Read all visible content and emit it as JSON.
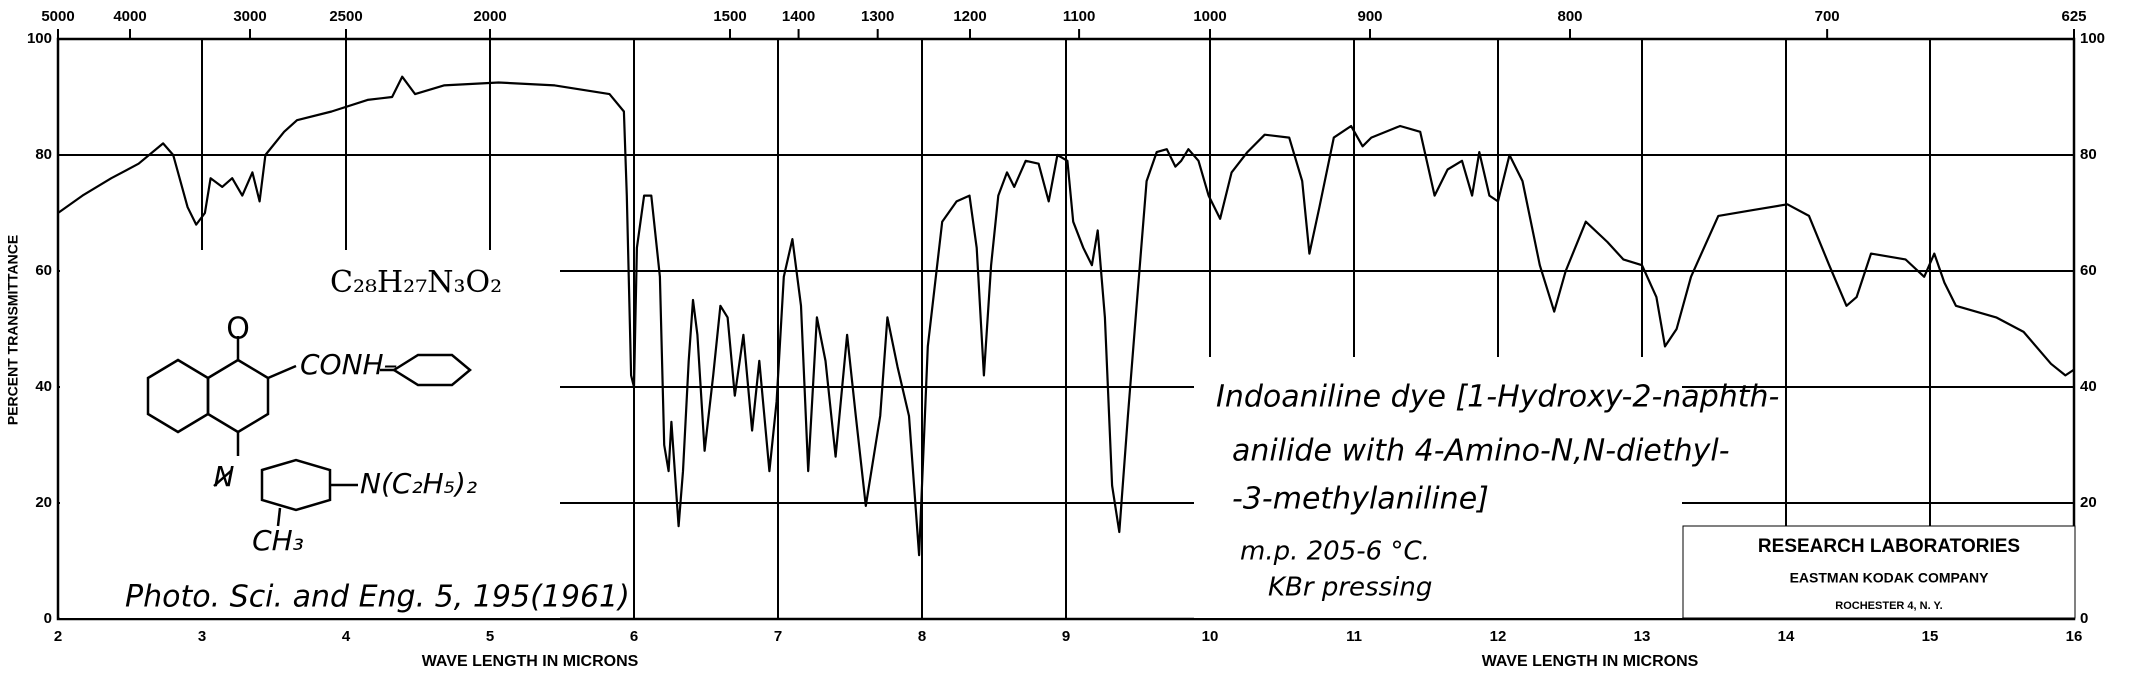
{
  "chart_data": {
    "type": "line",
    "y_label": "PERCENT TRANSMITTANCE",
    "x_label": "WAVE LENGTH IN MICRONS",
    "xlim": [
      2,
      16
    ],
    "ylim": [
      0,
      100
    ],
    "xticks": [
      2,
      3,
      4,
      5,
      6,
      7,
      8,
      9,
      10,
      11,
      12,
      13,
      14,
      15,
      16
    ],
    "yticks": [
      0,
      20,
      40,
      60,
      80,
      100
    ],
    "x2ticks": [
      5000,
      4000,
      3000,
      2500,
      2000,
      1500,
      1400,
      1300,
      1200,
      1100,
      1000,
      900,
      800,
      700,
      625
    ],
    "grid": true,
    "color": "#000000",
    "x": [
      2.0,
      2.17,
      2.37,
      2.56,
      2.73,
      2.8,
      2.9,
      2.96,
      3.02,
      3.06,
      3.14,
      3.21,
      3.28,
      3.35,
      3.4,
      3.44,
      3.57,
      3.66,
      3.9,
      4.15,
      4.32,
      4.39,
      4.48,
      4.68,
      5.06,
      5.45,
      5.83,
      5.93,
      5.95,
      5.98,
      6.0,
      6.02,
      6.07,
      6.12,
      6.18,
      6.21,
      6.24,
      6.26,
      6.31,
      6.34,
      6.38,
      6.41,
      6.44,
      6.49,
      6.55,
      6.6,
      6.65,
      6.7,
      6.76,
      6.82,
      6.87,
      6.94,
      6.99,
      7.04,
      7.1,
      7.16,
      7.21,
      7.27,
      7.33,
      7.4,
      7.48,
      7.54,
      7.61,
      7.71,
      7.76,
      7.83,
      7.91,
      7.98,
      8.04,
      8.14,
      8.24,
      8.33,
      8.38,
      8.43,
      8.48,
      8.53,
      8.59,
      8.64,
      8.72,
      8.81,
      8.88,
      8.94,
      9.01,
      9.05,
      9.12,
      9.18,
      9.22,
      9.27,
      9.32,
      9.37,
      9.43,
      9.49,
      9.56,
      9.63,
      9.7,
      9.76,
      9.8,
      9.85,
      9.92,
      9.99,
      10.07,
      10.15,
      10.26,
      10.38,
      10.55,
      10.64,
      10.69,
      10.76,
      10.86,
      10.98,
      11.06,
      11.12,
      11.32,
      11.46,
      11.56,
      11.65,
      11.75,
      11.82,
      11.87,
      11.94,
      12.0,
      12.08,
      12.17,
      12.29,
      12.39,
      12.47,
      12.61,
      12.76,
      12.87,
      13.0,
      13.1,
      13.16,
      13.24,
      13.34,
      13.53,
      13.77,
      14.01,
      14.16,
      14.3,
      14.42,
      14.49,
      14.59,
      14.83,
      14.96,
      15.03,
      15.1,
      15.18,
      15.46,
      15.65,
      15.84,
      15.94,
      16.0
    ],
    "values": [
      70,
      73,
      76,
      78.5,
      82,
      80,
      71,
      68,
      70,
      76,
      74.5,
      76,
      73,
      77,
      72,
      80,
      84,
      86,
      87.5,
      89.5,
      90,
      93.5,
      90.5,
      92,
      92.5,
      92,
      90.5,
      87.5,
      73,
      42,
      40,
      64,
      73,
      73,
      59,
      30,
      25.5,
      34,
      16,
      25.5,
      44.5,
      55,
      49,
      29,
      42,
      54,
      52,
      38.5,
      49,
      32.5,
      44.5,
      25.5,
      37.5,
      59,
      65.5,
      54,
      25.5,
      52,
      44.5,
      28,
      49,
      35,
      19.5,
      35,
      52,
      43.5,
      35,
      11,
      47,
      68.5,
      72,
      73,
      64,
      42,
      61,
      73,
      77,
      74.5,
      79,
      78.5,
      72,
      80,
      79,
      68.5,
      64,
      61,
      67,
      52,
      23,
      15,
      35,
      54,
      75.5,
      80.5,
      81,
      78,
      79,
      81,
      79,
      73,
      69,
      77,
      80.5,
      83.5,
      83,
      75.5,
      63,
      71,
      83,
      85,
      81.5,
      83,
      85,
      84,
      73,
      77.5,
      79,
      73,
      80.5,
      73,
      72,
      80,
      75.5,
      61,
      53,
      60,
      68.5,
      65,
      62,
      61,
      55.5,
      47,
      50,
      59,
      69.5,
      70.5,
      71.5,
      69.5,
      61,
      54,
      55.5,
      63,
      62,
      59,
      63,
      58,
      54,
      52,
      49.5,
      44,
      42,
      43
    ],
    "formula": "C₂₈H₂₇N₃O₂",
    "structure_labels": [
      "O",
      "CONH–",
      "N",
      "N(C₂H₅)₂",
      "CH₃"
    ],
    "reference": "Photo. Sci. and Eng. 5, 195(1961)",
    "description": [
      "Indoaniline dye [1-Hydroxy-2-naphth-",
      "anilide with 4-Amino-N,N-diethyl-",
      "-3-methylaniline]",
      "m.p. 205-6 °C.",
      "KBr pressing"
    ],
    "laboratory": [
      "RESEARCH LABORATORIES",
      "EASTMAN KODAK COMPANY",
      "ROCHESTER 4, N. Y."
    ]
  }
}
